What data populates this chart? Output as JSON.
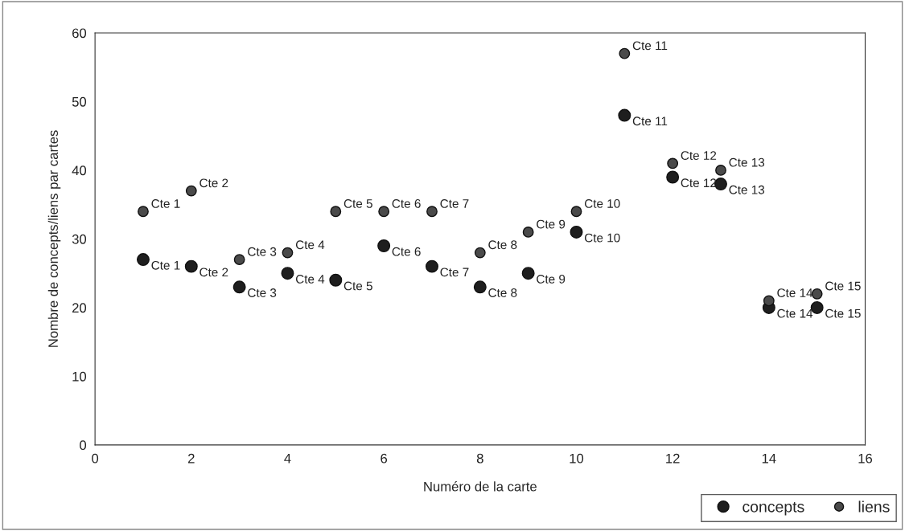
{
  "chart_data": {
    "type": "scatter",
    "xlabel": "Numéro de la carte",
    "ylabel": "Nombre de concepts/liens par cartes",
    "x": [
      1,
      2,
      3,
      4,
      5,
      6,
      7,
      8,
      9,
      10,
      11,
      12,
      13,
      14,
      15
    ],
    "series": [
      {
        "name": "concepts",
        "color": "#1e1e1e",
        "values": [
          27,
          26,
          23,
          25,
          24,
          29,
          26,
          23,
          25,
          31,
          48,
          39,
          38,
          20,
          20
        ]
      },
      {
        "name": "liens",
        "color": "#4a4a4a",
        "values": [
          34,
          37,
          27,
          28,
          34,
          34,
          34,
          28,
          31,
          34,
          57,
          41,
          40,
          21,
          22
        ]
      }
    ],
    "annotations": [
      {
        "text": "Cte 1",
        "x": 1,
        "y": 27
      },
      {
        "text": "Cte 2",
        "x": 2,
        "y": 26
      },
      {
        "text": "Cte 3",
        "x": 3,
        "y": 23
      },
      {
        "text": "Cte 4",
        "x": 4,
        "y": 25
      },
      {
        "text": "Cte 5",
        "x": 5,
        "y": 24
      },
      {
        "text": "Cte 6",
        "x": 6,
        "y": 29
      },
      {
        "text": "Cte 7",
        "x": 7,
        "y": 26
      },
      {
        "text": "Cte 8",
        "x": 8,
        "y": 23
      },
      {
        "text": "Cte 9",
        "x": 9,
        "y": 25
      },
      {
        "text": "Cte 10",
        "x": 10,
        "y": 31
      },
      {
        "text": "Cte 11",
        "x": 11,
        "y": 48
      },
      {
        "text": "Cte 12",
        "x": 12,
        "y": 39
      },
      {
        "text": "Cte 13",
        "x": 13,
        "y": 38
      },
      {
        "text": "Cte 14",
        "x": 14,
        "y": 20
      },
      {
        "text": "Cte 15",
        "x": 15,
        "y": 20
      },
      {
        "text": "Cte 1",
        "x": 1,
        "y": 34
      },
      {
        "text": "Cte 2",
        "x": 2,
        "y": 37
      },
      {
        "text": "Cte 3",
        "x": 3,
        "y": 27
      },
      {
        "text": "Cte 4",
        "x": 4,
        "y": 28
      },
      {
        "text": "Cte 5",
        "x": 5,
        "y": 34
      },
      {
        "text": "Cte 6",
        "x": 6,
        "y": 34
      },
      {
        "text": "Cte 7",
        "x": 7,
        "y": 34
      },
      {
        "text": "Cte 8",
        "x": 8,
        "y": 28
      },
      {
        "text": "Cte 9",
        "x": 9,
        "y": 31
      },
      {
        "text": "Cte 10",
        "x": 10,
        "y": 34
      },
      {
        "text": "Cte 11",
        "x": 11,
        "y": 57
      },
      {
        "text": "Cte 12",
        "x": 12,
        "y": 41
      },
      {
        "text": "Cte 13",
        "x": 13,
        "y": 40
      },
      {
        "text": "Cte 14",
        "x": 14,
        "y": 21
      },
      {
        "text": "Cte 15",
        "x": 15,
        "y": 22
      }
    ],
    "xlim": [
      0,
      16
    ],
    "xticks": [
      0,
      2,
      4,
      6,
      8,
      10,
      12,
      14,
      16
    ],
    "ylim": [
      0,
      60
    ],
    "yticks": [
      0,
      10,
      20,
      30,
      40,
      50,
      60
    ],
    "grid": false,
    "legend": "bottom right",
    "marker": "circle"
  }
}
